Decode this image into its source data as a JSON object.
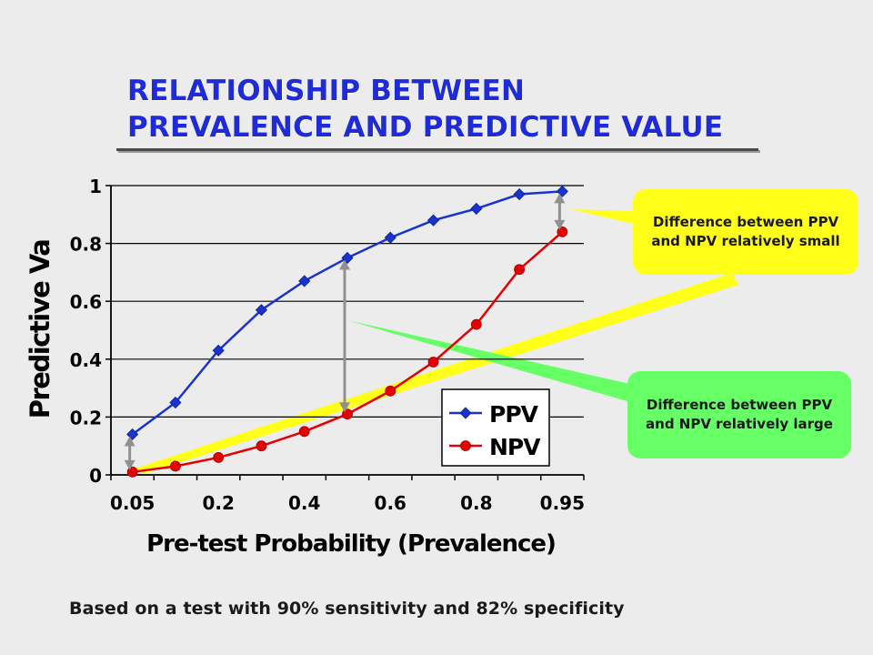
{
  "title": {
    "line1": "RELATIONSHIP BETWEEN",
    "line2": "PREVALENCE AND PREDICTIVE VALUE"
  },
  "chart_data": {
    "type": "line",
    "xlabel": "Pre-test Probability (Prevalence)",
    "ylabel": "Predictive Va",
    "x": [
      0.05,
      0.1,
      0.2,
      0.3,
      0.4,
      0.5,
      0.6,
      0.7,
      0.8,
      0.9,
      0.95
    ],
    "x_tick_labels": [
      "0.05",
      "0.2",
      "0.4",
      "0.6",
      "0.8",
      "0.95"
    ],
    "x_tick_positions": [
      0.05,
      0.2,
      0.4,
      0.6,
      0.8,
      0.95
    ],
    "y_tick_labels": [
      "0",
      "0.2",
      "0.4",
      "0.6",
      "0.8",
      "1"
    ],
    "ylim": [
      0,
      1
    ],
    "grid": "horizontal",
    "legend": "bottom-right",
    "series": [
      {
        "name": "PPV",
        "color": "#1a33cc",
        "marker": "diamond",
        "values": [
          0.14,
          0.25,
          0.43,
          0.57,
          0.67,
          0.75,
          0.82,
          0.88,
          0.92,
          0.97,
          0.98
        ]
      },
      {
        "name": "NPV",
        "color": "#e60000",
        "marker": "circle",
        "values": [
          0.01,
          0.03,
          0.06,
          0.1,
          0.15,
          0.21,
          0.29,
          0.39,
          0.52,
          0.71,
          0.84
        ]
      }
    ]
  },
  "callouts": {
    "small": "Difference between PPV and NPV relatively small",
    "large": "Difference between PPV and NPV relatively large"
  },
  "colors": {
    "title": "#1f2bd6",
    "callout_small": "#ffff1a",
    "callout_large": "#66ff66",
    "arrow": "#909090"
  },
  "footnote": "Based on a test with 90% sensitivity and 82% specificity"
}
